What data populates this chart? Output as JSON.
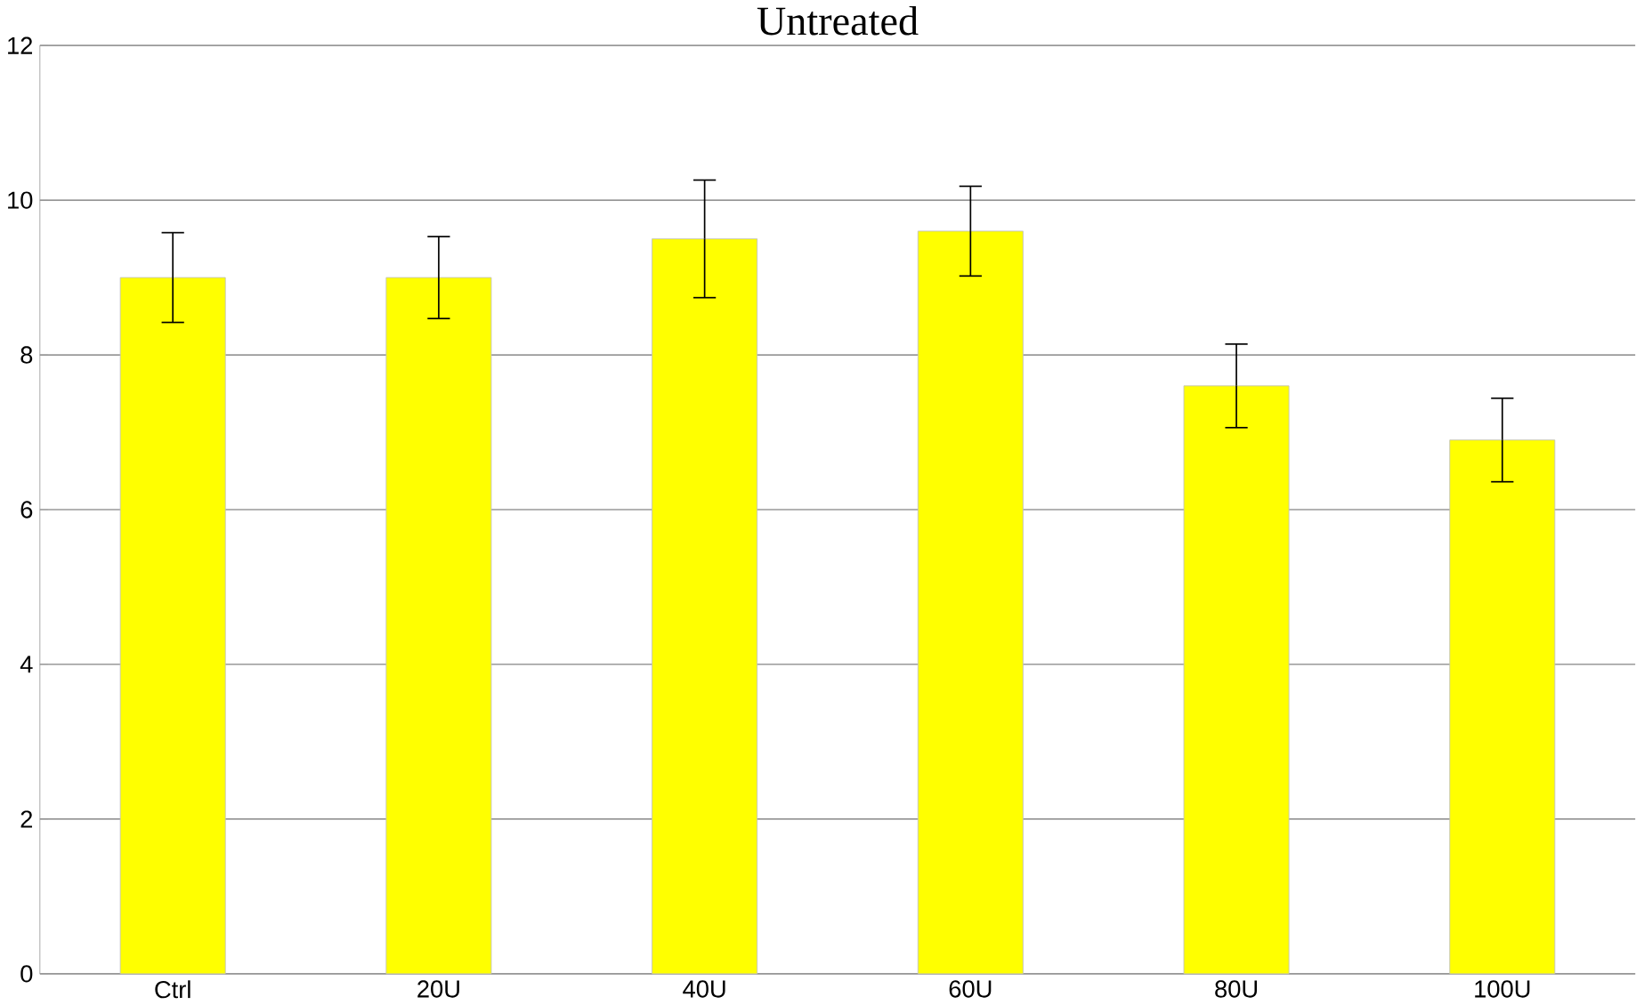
{
  "chart_data": {
    "type": "bar",
    "title": "Untreated",
    "categories": [
      "Ctrl",
      "20U",
      "40U",
      "60U",
      "80U",
      "100U"
    ],
    "values": [
      9.0,
      9.0,
      9.5,
      9.6,
      7.6,
      6.9
    ],
    "errors": [
      0.58,
      0.53,
      0.76,
      0.58,
      0.54,
      0.54
    ],
    "color": "#ffff00",
    "ylim": [
      0,
      12
    ],
    "yticks": [
      0,
      2,
      4,
      6,
      8,
      10,
      12
    ],
    "grid": "y"
  }
}
